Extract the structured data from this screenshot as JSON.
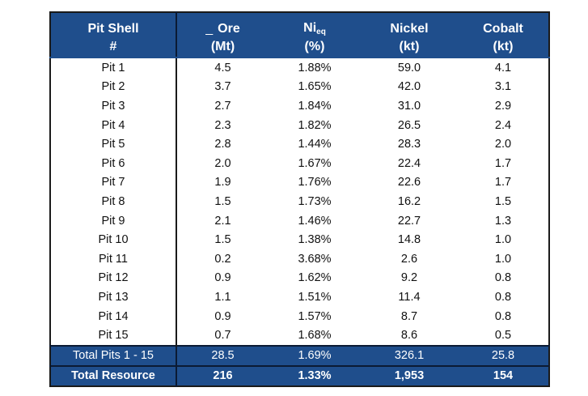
{
  "headers": {
    "row1": [
      "Pit Shell",
      "_",
      "Ore",
      "Ni",
      "eq",
      "Nickel",
      "Cobalt"
    ],
    "row2": [
      "#",
      "(Mt)",
      "(%)",
      "(kt)",
      "(kt)"
    ]
  },
  "rows": [
    [
      "Pit 1",
      "4.5",
      "1.88%",
      "59.0",
      "4.1"
    ],
    [
      "Pit 2",
      "3.7",
      "1.65%",
      "42.0",
      "3.1"
    ],
    [
      "Pit 3",
      "2.7",
      "1.84%",
      "31.0",
      "2.9"
    ],
    [
      "Pit 4",
      "2.3",
      "1.82%",
      "26.5",
      "2.4"
    ],
    [
      "Pit 5",
      "2.8",
      "1.44%",
      "28.3",
      "2.0"
    ],
    [
      "Pit 6",
      "2.0",
      "1.67%",
      "22.4",
      "1.7"
    ],
    [
      "Pit 7",
      "1.9",
      "1.76%",
      "22.6",
      "1.7"
    ],
    [
      "Pit 8",
      "1.5",
      "1.73%",
      "16.2",
      "1.5"
    ],
    [
      "Pit 9",
      "2.1",
      "1.46%",
      "22.7",
      "1.3"
    ],
    [
      "Pit 10",
      "1.5",
      "1.38%",
      "14.8",
      "1.0"
    ],
    [
      "Pit 11",
      "0.2",
      "3.68%",
      "2.6",
      "1.0"
    ],
    [
      "Pit 12",
      "0.9",
      "1.62%",
      "9.2",
      "0.8"
    ],
    [
      "Pit 13",
      "1.1",
      "1.51%",
      "11.4",
      "0.8"
    ],
    [
      "Pit 14",
      "0.9",
      "1.57%",
      "8.7",
      "0.8"
    ],
    [
      "Pit 15",
      "0.7",
      "1.68%",
      "8.6",
      "0.5"
    ]
  ],
  "totals": [
    [
      "Total Pits 1 - 15",
      "28.5",
      "1.69%",
      "326.1",
      "25.8"
    ],
    [
      "Total Resource",
      "216",
      "1.33%",
      "1,953",
      "154"
    ]
  ],
  "colors": {
    "header_bg": "#1f4e8c",
    "header_text": "#ffffff",
    "body_text": "#111111"
  }
}
